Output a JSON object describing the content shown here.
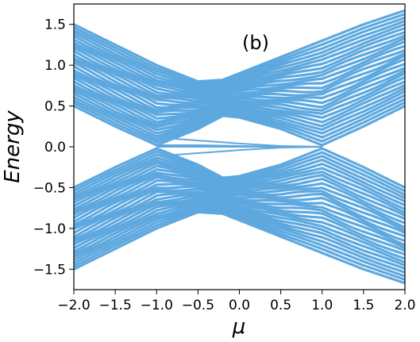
{
  "chart_data": {
    "type": "line",
    "panel_label": "(b)",
    "xlabel": "μ",
    "ylabel": "Energy",
    "xlim": [
      -2.0,
      2.0
    ],
    "ylim": [
      -1.75,
      1.75
    ],
    "x_ticks": [
      -2.0,
      -1.5,
      -1.0,
      -0.5,
      0.0,
      0.5,
      1.0,
      1.5,
      2.0
    ],
    "x_tick_labels": [
      "−2.0",
      "−1.5",
      "−1.0",
      "−0.5",
      "0.0",
      "0.5",
      "1.0",
      "1.5",
      "2.0"
    ],
    "y_ticks": [
      1.5,
      1.0,
      0.5,
      0.0,
      -0.5,
      -1.0,
      -1.5
    ],
    "y_tick_labels": [
      "1.5",
      "1.0",
      "0.5",
      "0.0",
      "−0.5",
      "−1.0",
      "−1.5"
    ],
    "grid": false,
    "series_color": "#5DA8DF",
    "band_edges": {
      "mu": [
        -2.0,
        -1.5,
        -1.0,
        -0.5,
        -0.2,
        0.0,
        0.5,
        1.0,
        1.5,
        2.0
      ],
      "upper_outer": [
        1.5,
        1.25,
        1.0,
        0.8,
        0.82,
        0.9,
        1.1,
        1.3,
        1.5,
        1.67
      ],
      "upper_inner": [
        0.5,
        0.25,
        0.02,
        0.22,
        0.38,
        0.36,
        0.22,
        0.02,
        0.25,
        0.5
      ],
      "lower_inner": [
        -0.5,
        -0.25,
        -0.02,
        -0.22,
        -0.38,
        -0.36,
        -0.22,
        -0.02,
        -0.25,
        -0.5
      ],
      "lower_outer": [
        -1.5,
        -1.25,
        -1.0,
        -0.8,
        -0.82,
        -0.9,
        -1.1,
        -1.3,
        -1.5,
        -1.67
      ]
    },
    "edge_states": [
      {
        "mu": [
          -1.0,
          -0.5,
          0.0,
          0.5,
          1.0
        ],
        "energy": [
          0.02,
          0.02,
          0.01,
          0.0,
          0.0
        ]
      },
      {
        "mu": [
          -1.0,
          -0.5,
          0.0,
          0.5,
          1.0
        ],
        "energy": [
          0.0,
          0.0,
          0.0,
          0.0,
          0.0
        ]
      },
      {
        "mu": [
          -0.8,
          -0.4,
          0.0,
          0.5,
          1.0
        ],
        "energy": [
          0.1,
          0.07,
          0.04,
          0.01,
          0.0
        ]
      },
      {
        "mu": [
          -0.8,
          -0.4,
          0.0,
          0.5,
          1.0
        ],
        "energy": [
          -0.1,
          -0.07,
          -0.04,
          -0.01,
          0.0
        ]
      }
    ],
    "n_bulk_lines": 28
  }
}
